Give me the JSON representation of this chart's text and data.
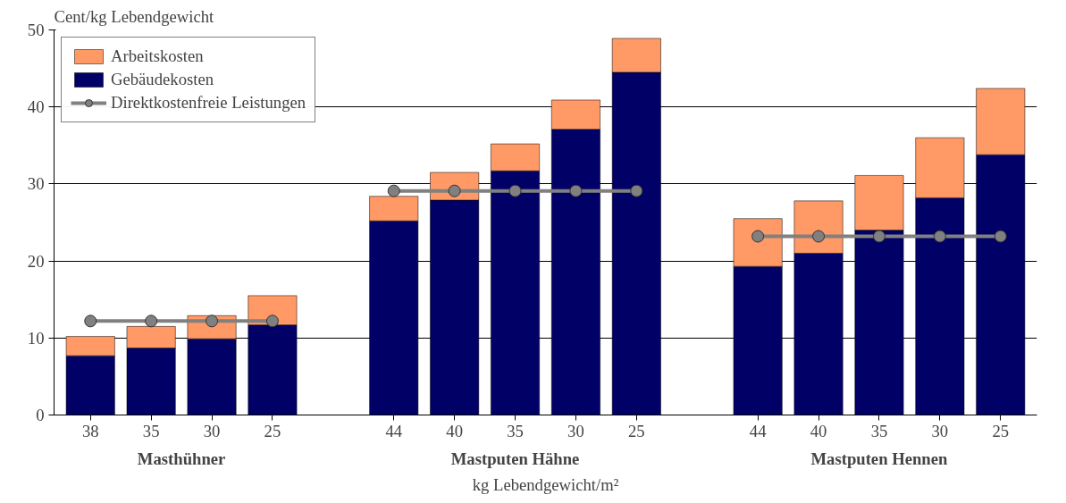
{
  "chart_data": {
    "type": "bar",
    "stacked": true,
    "categories": [
      "38",
      "35",
      "30",
      "25",
      null,
      "44",
      "40",
      "35",
      "30",
      "25",
      null,
      "44",
      "40",
      "35",
      "30",
      "25"
    ],
    "series": [
      {
        "name": "Gebäudekosten",
        "color": "#000066",
        "values": [
          7.7,
          8.7,
          9.9,
          11.7,
          null,
          25.2,
          27.9,
          31.7,
          37.1,
          44.5,
          null,
          19.3,
          21.0,
          24.0,
          28.2,
          33.8
        ]
      },
      {
        "name": "Arbeitskosten",
        "color": "#ff9966",
        "values": [
          2.5,
          2.8,
          3.0,
          3.8,
          null,
          3.2,
          3.6,
          3.5,
          3.8,
          4.4,
          null,
          6.2,
          6.8,
          7.1,
          7.8,
          8.6
        ]
      },
      {
        "name": "Direktkostenfreie Leistungen",
        "type": "line",
        "color": "#808080",
        "marker": "circle",
        "values": [
          12.2,
          12.2,
          12.2,
          12.2,
          null,
          29.1,
          29.1,
          29.1,
          29.1,
          29.1,
          null,
          23.2,
          23.2,
          23.2,
          23.2,
          23.2
        ]
      }
    ],
    "annotations": [
      "Masthühner",
      "Mastputen Hähne",
      "Mastputen Hennen"
    ],
    "xlabel": "kg Lebendgewicht/m²",
    "ylabel": "Cent/kg Lebendgewicht",
    "ylim": [
      0,
      50
    ],
    "yticks": [
      0,
      10,
      20,
      30,
      40,
      50
    ],
    "grid": "y",
    "legend": "top left"
  }
}
